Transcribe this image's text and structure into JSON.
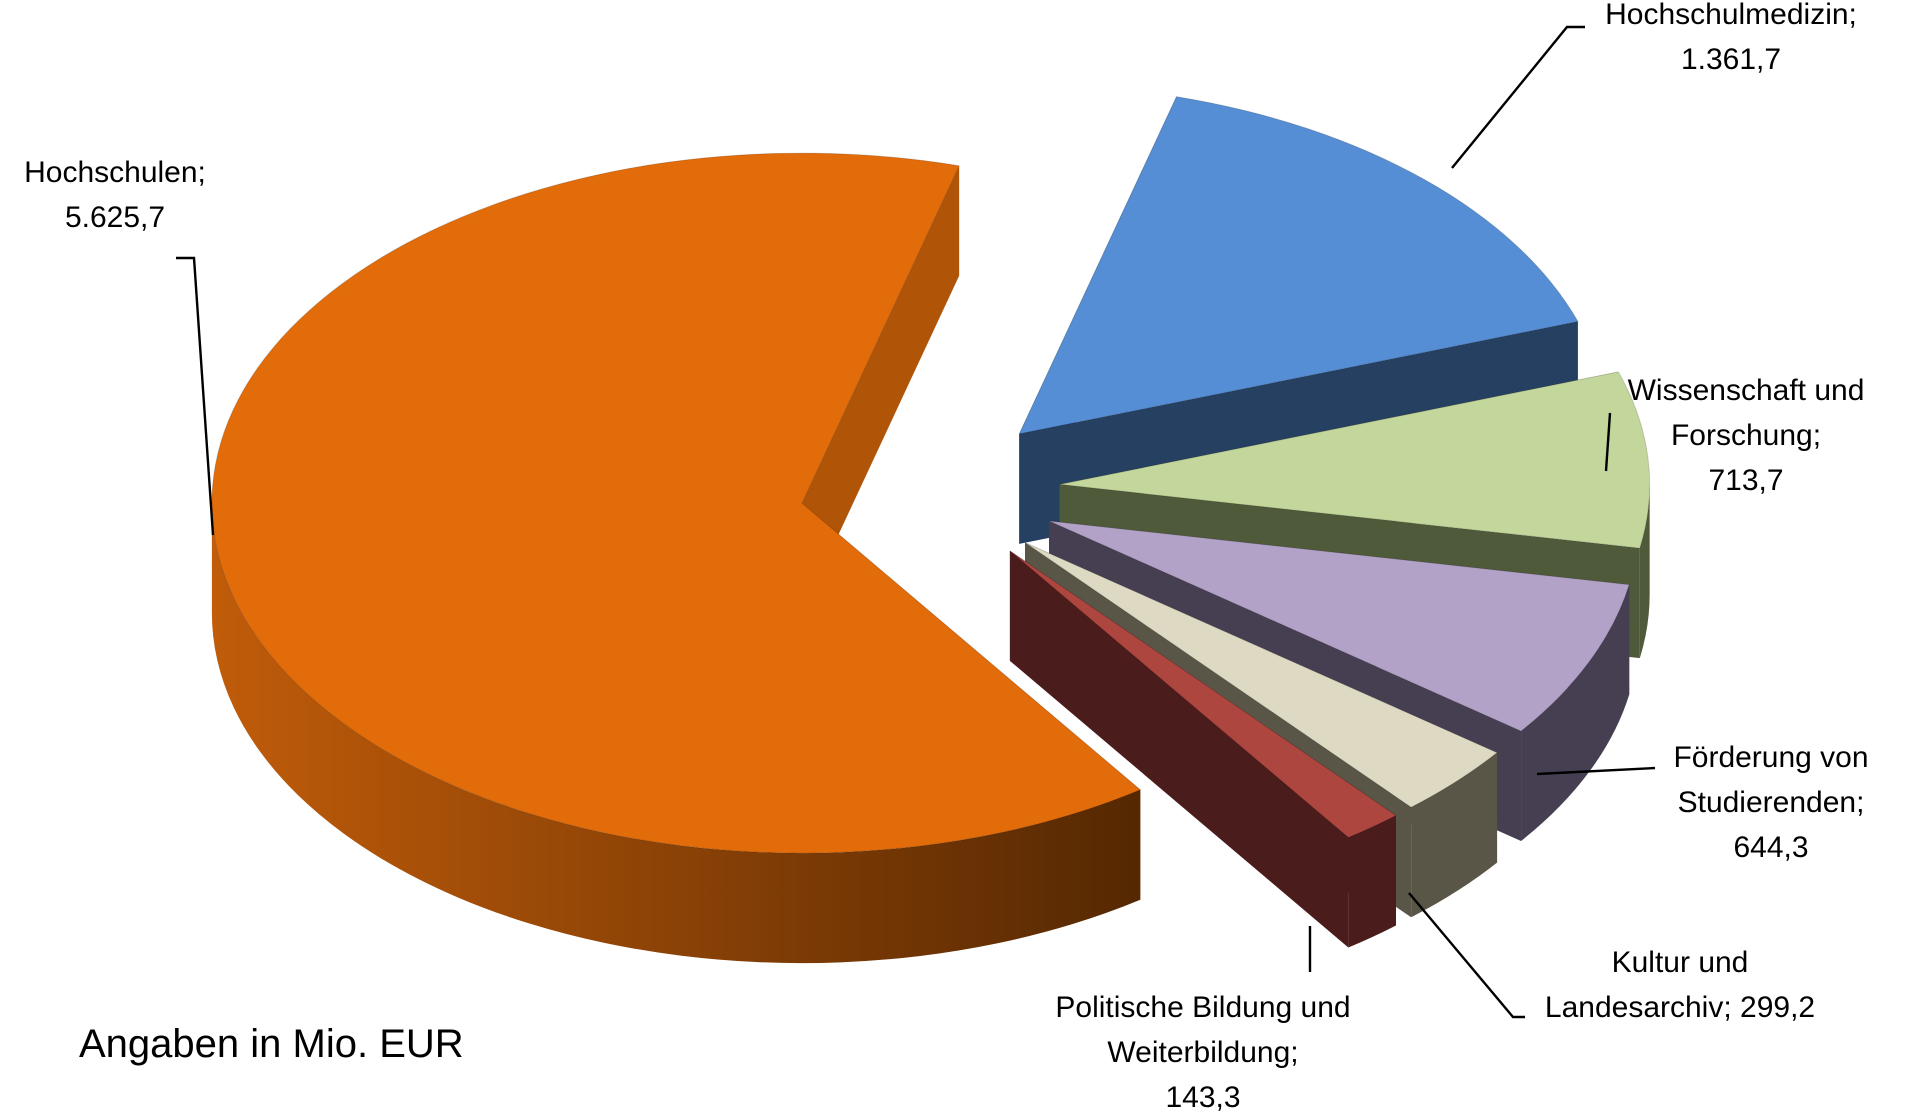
{
  "chart_data": {
    "type": "pie3d",
    "annotation": "Angaben in Mio. EUR",
    "categories": [
      "Hochschulen;",
      "Hochschulmedizin;",
      "Wissenschaft und Forschung;",
      "Förderung von Studierenden;",
      "Kultur und Landesarchiv;",
      "Politische Bildung und Weiterbildung;"
    ],
    "values": [
      5625.7,
      1361.7,
      713.7,
      644.3,
      299.2,
      143.3
    ],
    "value_labels": [
      "5.625,7",
      "1.361,7",
      "713,7",
      "644,3",
      "299,2",
      "143,3"
    ],
    "colors": [
      "#E36C0A",
      "#558ED5",
      "#C3D69B",
      "#B3A2C7",
      "#DDD9C3",
      "#AE4640"
    ],
    "side_colors": [
      "#B05408",
      "#254061",
      "#4F5A3A",
      "#463F52",
      "#595647",
      "#4A1C1C"
    ]
  }
}
